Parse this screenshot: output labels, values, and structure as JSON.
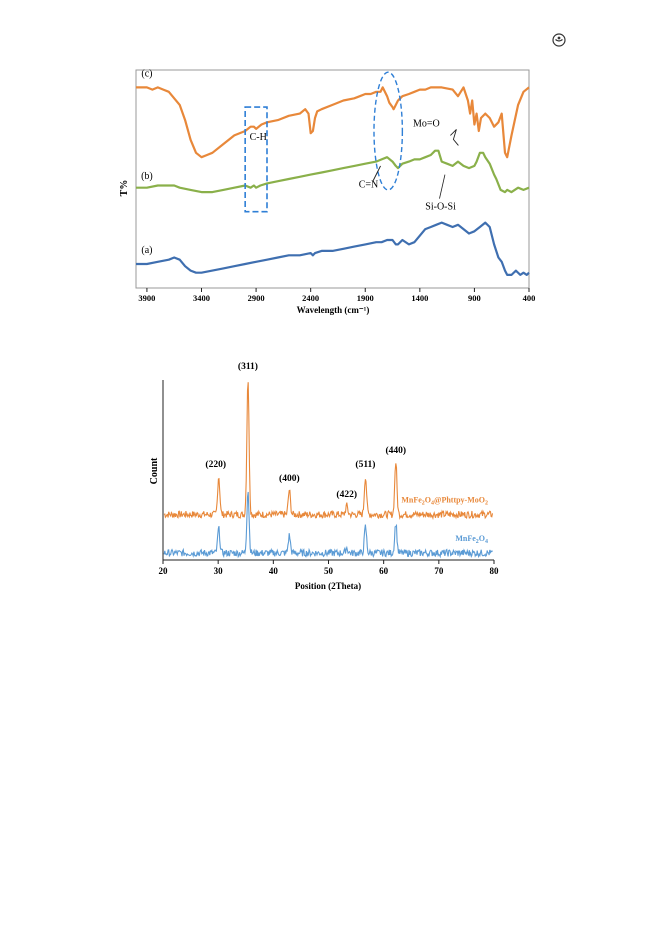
{
  "corner_icon": "circled-logo-icon",
  "chart_data": [
    {
      "type": "line",
      "xlabel": "Wavelength (cm⁻¹)",
      "ylabel": "T%",
      "xlim": [
        4000,
        400
      ],
      "x_reversed": true,
      "xticks": [
        "3900",
        "3400",
        "2900",
        "2400",
        "1900",
        "1400",
        "900",
        "400"
      ],
      "grid": false,
      "series": [
        {
          "name": "(c)",
          "color": "#e8883a",
          "x": [
            4000,
            3900,
            3850,
            3800,
            3750,
            3700,
            3600,
            3550,
            3500,
            3450,
            3400,
            3350,
            3300,
            3200,
            3100,
            3000,
            2950,
            2920,
            2900,
            2850,
            2800,
            2700,
            2600,
            2500,
            2450,
            2420,
            2400,
            2380,
            2360,
            2340,
            2300,
            2200,
            2100,
            2000,
            1950,
            1900,
            1850,
            1800,
            1760,
            1740,
            1700,
            1680,
            1650,
            1640,
            1630,
            1620,
            1600,
            1560,
            1500,
            1450,
            1400,
            1350,
            1300,
            1200,
            1100,
            1050,
            1000,
            960,
            940,
            920,
            900,
            880,
            860,
            840,
            800,
            760,
            720,
            680,
            650,
            620,
            600,
            560,
            500,
            450,
            400
          ],
          "y": [
            92,
            92,
            91,
            92,
            91,
            90,
            84,
            77,
            68,
            62,
            60,
            61,
            62,
            66,
            70,
            72,
            74,
            74,
            73,
            75,
            76,
            77,
            79,
            80,
            82,
            80,
            71,
            72,
            78,
            81,
            82,
            84,
            86,
            87,
            88,
            89,
            89,
            90,
            90,
            92,
            88,
            85,
            83,
            82,
            83,
            84,
            86,
            88,
            89,
            90,
            91,
            91,
            92,
            92,
            91,
            88,
            92,
            86,
            80,
            86,
            75,
            80,
            72,
            78,
            80,
            78,
            74,
            76,
            80,
            62,
            60,
            70,
            84,
            90,
            92
          ]
        },
        {
          "name": "(b)",
          "color": "#8ab04a",
          "x": [
            4000,
            3900,
            3800,
            3700,
            3650,
            3600,
            3500,
            3400,
            3300,
            3200,
            3100,
            3000,
            2950,
            2920,
            2900,
            2860,
            2800,
            2700,
            2600,
            2500,
            2400,
            2300,
            2200,
            2100,
            2000,
            1900,
            1800,
            1750,
            1700,
            1650,
            1620,
            1600,
            1560,
            1500,
            1450,
            1400,
            1350,
            1300,
            1260,
            1230,
            1200,
            1150,
            1100,
            1050,
            1000,
            950,
            900,
            880,
            850,
            820,
            800,
            760,
            720,
            700,
            660,
            620,
            600,
            560,
            500,
            450,
            400
          ],
          "y": [
            46,
            46,
            47,
            47,
            47,
            46,
            45,
            44,
            44,
            45,
            46,
            47,
            46,
            47,
            46,
            47,
            48,
            49,
            50,
            51,
            52,
            53,
            54,
            55,
            56,
            57,
            58,
            59,
            60,
            58,
            56,
            55,
            57,
            58,
            59,
            59,
            60,
            61,
            63,
            63,
            58,
            57,
            56,
            58,
            56,
            55,
            56,
            58,
            62,
            62,
            60,
            57,
            52,
            50,
            45,
            44,
            45,
            44,
            46,
            45,
            46
          ]
        },
        {
          "name": "(a)",
          "color": "#3f6fb0",
          "x": [
            4000,
            3900,
            3800,
            3700,
            3650,
            3600,
            3550,
            3500,
            3450,
            3400,
            3300,
            3200,
            3100,
            3000,
            2900,
            2800,
            2700,
            2600,
            2500,
            2400,
            2380,
            2360,
            2300,
            2200,
            2100,
            2000,
            1900,
            1800,
            1750,
            1700,
            1650,
            1620,
            1600,
            1560,
            1500,
            1450,
            1400,
            1350,
            1300,
            1250,
            1200,
            1150,
            1100,
            1050,
            1000,
            950,
            900,
            850,
            800,
            760,
            720,
            680,
            650,
            620,
            600,
            560,
            520,
            480,
            450,
            420,
            400
          ],
          "y": [
            11,
            11,
            12,
            13,
            14,
            13,
            10,
            8,
            7,
            7,
            8,
            9,
            10,
            11,
            12,
            13,
            14,
            15,
            15,
            16,
            15,
            16,
            17,
            17,
            18,
            19,
            20,
            21,
            21,
            22,
            22,
            20,
            20,
            22,
            20,
            21,
            24,
            27,
            28,
            29,
            30,
            29,
            28,
            29,
            27,
            25,
            26,
            28,
            30,
            28,
            20,
            14,
            12,
            8,
            6,
            6,
            8,
            6,
            7,
            6,
            7
          ]
        }
      ],
      "annotations": [
        {
          "text": "C-H",
          "x": 2880,
          "y": 68
        },
        {
          "text": "C=N",
          "x": 1870,
          "y": 46
        },
        {
          "text": "Mo=O",
          "x": 1340,
          "y": 74
        },
        {
          "text": "Si-O-Si",
          "x": 1210,
          "y": 36
        },
        {
          "text": "(c)",
          "x": 3900,
          "y": 97
        },
        {
          "text": "(b)",
          "x": 3900,
          "y": 50
        },
        {
          "text": "(a)",
          "x": 3900,
          "y": 16
        }
      ]
    },
    {
      "type": "line",
      "xlabel": "Position (2Theta)",
      "ylabel": "Count",
      "xlim": [
        20,
        80
      ],
      "xticks": [
        "20",
        "30",
        "40",
        "50",
        "60",
        "70",
        "80"
      ],
      "grid": false,
      "peaks": [
        30.1,
        35.4,
        42.9,
        53.3,
        56.7,
        62.2
      ],
      "series": [
        {
          "name": "MnFe₂O₄@Phttpy-MoO₂",
          "label_parts": [
            "MnFe",
            "2",
            "O",
            "4",
            "@Phttpy-MoO",
            "2"
          ],
          "color": "#e8883a",
          "baseline": 26,
          "peak_heights": [
            22,
            78,
            14,
            5,
            22,
            30
          ]
        },
        {
          "name": "MnFe₂O₄",
          "label_parts": [
            "MnFe",
            "2",
            "O",
            "4"
          ],
          "color": "#5b9bd5",
          "baseline": 4,
          "peak_heights": [
            14,
            36,
            10,
            3,
            15,
            17
          ]
        }
      ],
      "annotations": [
        {
          "text": "(220)",
          "x": 30.1
        },
        {
          "text": "(311)",
          "x": 35.4
        },
        {
          "text": "(400)",
          "x": 42.9
        },
        {
          "text": "(422)",
          "x": 53.3
        },
        {
          "text": "(511)",
          "x": 56.7
        },
        {
          "text": "(440)",
          "x": 62.2
        }
      ]
    }
  ]
}
